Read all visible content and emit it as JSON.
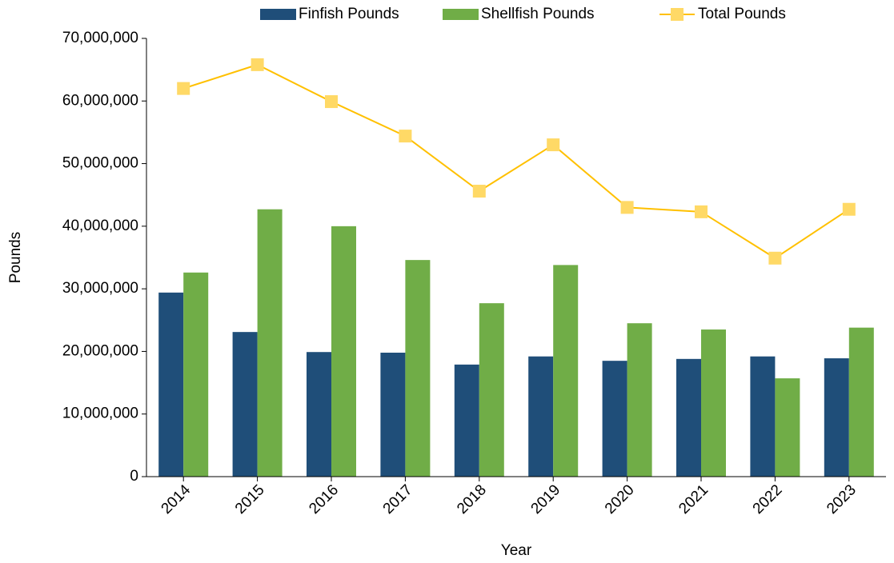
{
  "chart_data": {
    "type": "bar_line",
    "x_label": "Year",
    "y_label": "Pounds",
    "categories": [
      "2014",
      "2015",
      "2016",
      "2017",
      "2018",
      "2019",
      "2020",
      "2021",
      "2022",
      "2023"
    ],
    "series": [
      {
        "name": "Finfish Pounds",
        "type": "bar",
        "color": "#1f4e79",
        "values": [
          29400000,
          23100000,
          19900000,
          19800000,
          17900000,
          19200000,
          18500000,
          18800000,
          19200000,
          18900000
        ]
      },
      {
        "name": "Shellfish Pounds",
        "type": "bar",
        "color": "#70ad47",
        "values": [
          32600000,
          42700000,
          40000000,
          34600000,
          27700000,
          33800000,
          24500000,
          23500000,
          15700000,
          23800000
        ]
      },
      {
        "name": "Total Pounds",
        "type": "line",
        "color": "#ffc000",
        "marker_color": "#ffd966",
        "values": [
          62000000,
          65800000,
          59900000,
          54400000,
          45600000,
          53000000,
          43000000,
          42300000,
          34900000,
          42700000
        ]
      }
    ],
    "ylim": [
      0,
      70000000
    ],
    "yticks": [
      0,
      {
        "value": 10000000,
        "label": "10,000,000"
      },
      {
        "value": 20000000,
        "label": "20,000,000"
      },
      {
        "value": 30000000,
        "label": "30,000,000"
      },
      {
        "value": 40000000,
        "label": "40,000,000"
      },
      {
        "value": 50000000,
        "label": "50,000,000"
      },
      {
        "value": 60000000,
        "label": "60,000,000"
      },
      {
        "value": 70000000,
        "label": "70,000,000"
      }
    ],
    "grid": false,
    "legend": "top"
  }
}
